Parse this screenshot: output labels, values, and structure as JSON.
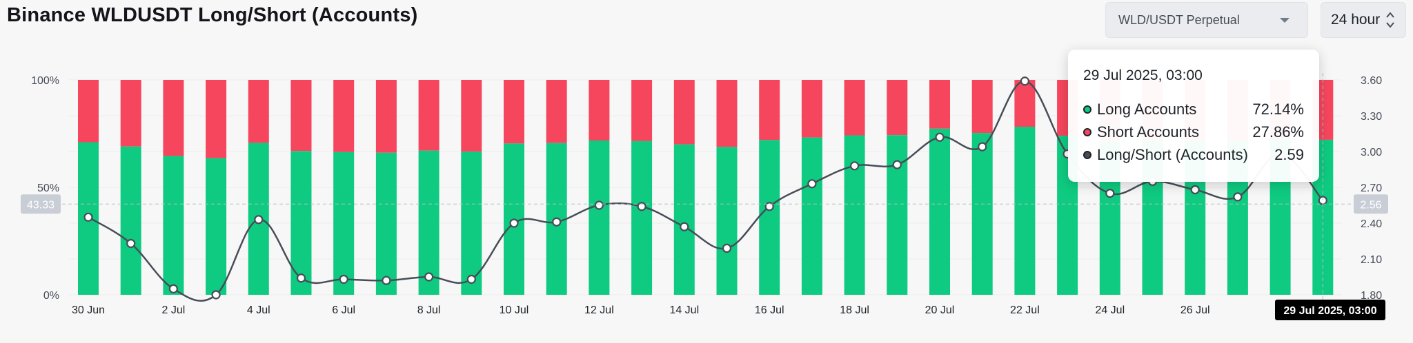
{
  "header": {
    "title": "Binance WLDUSDT Long/Short (Accounts)",
    "contract_select": "WLD/USDT Perpetual",
    "period_select": "24 hour"
  },
  "colors": {
    "long": "#0ecb81",
    "short": "#f6465d",
    "ratio_line": "#474d57"
  },
  "chart_data": {
    "type": "bar",
    "stacked": true,
    "dates": [
      "30 Jun",
      "1 Jul",
      "2 Jul",
      "3 Jul",
      "4 Jul",
      "5 Jul",
      "6 Jul",
      "7 Jul",
      "8 Jul",
      "9 Jul",
      "10 Jul",
      "11 Jul",
      "12 Jul",
      "13 Jul",
      "14 Jul",
      "15 Jul",
      "16 Jul",
      "17 Jul",
      "18 Jul",
      "19 Jul",
      "20 Jul",
      "21 Jul",
      "22 Jul",
      "23 Jul",
      "24 Jul",
      "25 Jul",
      "26 Jul",
      "27 Jul",
      "28 Jul",
      "29 Jul"
    ],
    "x_tick_labels": [
      "30 Jun",
      "2 Jul",
      "4 Jul",
      "6 Jul",
      "8 Jul",
      "10 Jul",
      "12 Jul",
      "14 Jul",
      "16 Jul",
      "18 Jul",
      "20 Jul",
      "22 Jul",
      "24 Jul",
      "26 Jul",
      ""
    ],
    "series": [
      {
        "name": "Long Accounts",
        "values": [
          71,
          69,
          64.6,
          63.6,
          70.7,
          66.9,
          66.4,
          66.1,
          67.1,
          66.6,
          70.4,
          70.6,
          71.8,
          71.5,
          70.0,
          68.8,
          72.0,
          73.2,
          74.2,
          74.3,
          77.3,
          75.3,
          78.2,
          74.0,
          71.5,
          71.8,
          71.7,
          71.4,
          72.5,
          72.14
        ]
      },
      {
        "name": "Short Accounts",
        "values": [
          29,
          31,
          35.4,
          36.4,
          29.3,
          33.1,
          33.6,
          33.9,
          32.9,
          33.4,
          29.6,
          29.4,
          28.2,
          28.5,
          30.0,
          31.2,
          28.0,
          26.8,
          25.8,
          25.7,
          22.7,
          24.7,
          21.8,
          26.0,
          28.5,
          28.2,
          28.3,
          28.6,
          27.5,
          27.86
        ]
      },
      {
        "name": "Long/Short (Accounts)",
        "axis": "right",
        "values": [
          2.45,
          2.23,
          1.85,
          1.8,
          2.43,
          1.94,
          1.93,
          1.92,
          1.95,
          1.93,
          2.4,
          2.41,
          2.55,
          2.54,
          2.37,
          2.19,
          2.54,
          2.73,
          2.88,
          2.89,
          3.12,
          3.04,
          3.59,
          2.98,
          2.65,
          2.75,
          2.68,
          2.62,
          2.98,
          2.59
        ]
      }
    ],
    "y_left_ticks": [
      "100%",
      "50%",
      "0%"
    ],
    "y_left_range": [
      0,
      100
    ],
    "y_right_ticks": [
      "3.60",
      "3.30",
      "3.00",
      "2.70",
      "2.40",
      "2.10",
      "1.80"
    ],
    "y_right_range": [
      1.8,
      3.6
    ],
    "crosshair": {
      "left_label": "43.33",
      "right_label": "2.56",
      "date_label": "29 Jul 2025, 03:00"
    },
    "tooltip": {
      "title": "29 Jul 2025, 03:00",
      "rows": [
        {
          "label": "Long Accounts",
          "value": "72.14%"
        },
        {
          "label": "Short Accounts",
          "value": "27.86%"
        },
        {
          "label": "Long/Short (Accounts)",
          "value": "2.59"
        }
      ]
    }
  }
}
